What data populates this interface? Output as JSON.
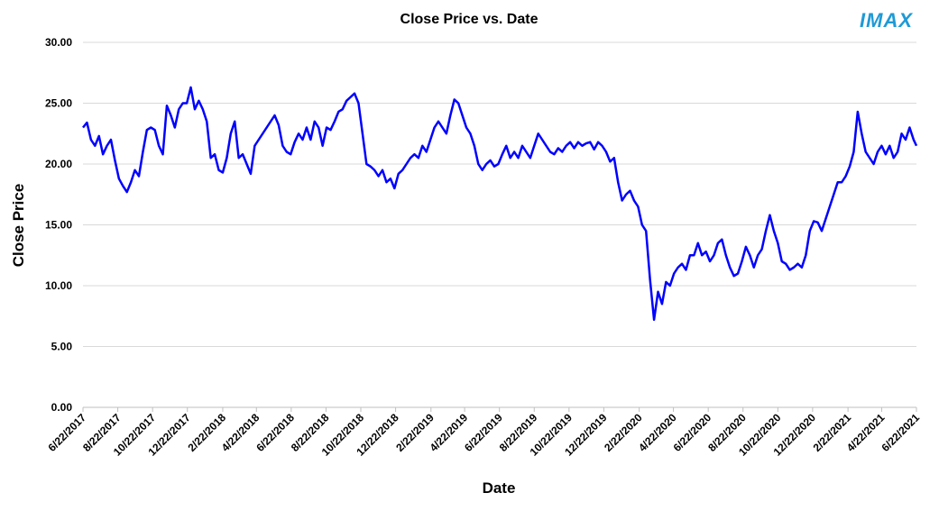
{
  "logo": "IMAX",
  "chart_data": {
    "type": "line",
    "title": "Close Price vs. Date",
    "x_label": "Date",
    "y_label": "Close Price",
    "grid": true,
    "ylim": [
      0,
      30
    ],
    "yticks": [
      {
        "value": 0,
        "label": "0.00"
      },
      {
        "value": 5,
        "label": "5.00"
      },
      {
        "value": 10,
        "label": "10.00"
      },
      {
        "value": 15,
        "label": "15.00"
      },
      {
        "value": 20,
        "label": "20.00"
      },
      {
        "value": 25,
        "label": "25.00"
      },
      {
        "value": 30,
        "label": "30.00"
      }
    ],
    "xlim": [
      "6/22/2017",
      "6/22/2021"
    ],
    "xticks": [
      "6/22/2017",
      "8/22/2017",
      "10/22/2017",
      "12/22/2017",
      "2/22/2018",
      "4/22/2018",
      "6/22/2018",
      "8/22/2018",
      "10/22/2018",
      "12/22/2018",
      "2/22/2019",
      "4/22/2019",
      "6/22/2019",
      "8/22/2019",
      "10/22/2019",
      "12/22/2019",
      "2/22/2020",
      "4/22/2020",
      "6/22/2020",
      "8/22/2020",
      "10/22/2020",
      "12/22/2020",
      "2/22/2021",
      "4/22/2021",
      "6/22/2021"
    ],
    "x": [
      "6/22/2017",
      "6/29/2017",
      "7/6/2017",
      "7/13/2017",
      "7/20/2017",
      "7/27/2017",
      "8/3/2017",
      "8/10/2017",
      "8/17/2017",
      "8/24/2017",
      "8/31/2017",
      "9/7/2017",
      "9/14/2017",
      "9/21/2017",
      "9/28/2017",
      "10/5/2017",
      "10/12/2017",
      "10/19/2017",
      "10/26/2017",
      "11/2/2017",
      "11/9/2017",
      "11/16/2017",
      "11/23/2017",
      "11/30/2017",
      "12/7/2017",
      "12/14/2017",
      "12/21/2017",
      "12/28/2017",
      "1/4/2018",
      "1/11/2018",
      "1/18/2018",
      "1/25/2018",
      "2/1/2018",
      "2/8/2018",
      "2/15/2018",
      "2/22/2018",
      "3/1/2018",
      "3/8/2018",
      "3/15/2018",
      "3/22/2018",
      "3/29/2018",
      "4/5/2018",
      "4/12/2018",
      "4/19/2018",
      "4/26/2018",
      "5/3/2018",
      "5/10/2018",
      "5/17/2018",
      "5/24/2018",
      "5/31/2018",
      "6/7/2018",
      "6/14/2018",
      "6/21/2018",
      "6/28/2018",
      "7/5/2018",
      "7/12/2018",
      "7/19/2018",
      "7/26/2018",
      "8/2/2018",
      "8/9/2018",
      "8/16/2018",
      "8/23/2018",
      "8/30/2018",
      "9/6/2018",
      "9/13/2018",
      "9/20/2018",
      "9/27/2018",
      "10/4/2018",
      "10/11/2018",
      "10/18/2018",
      "10/25/2018",
      "11/1/2018",
      "11/8/2018",
      "11/15/2018",
      "11/22/2018",
      "11/29/2018",
      "12/6/2018",
      "12/13/2018",
      "12/20/2018",
      "12/27/2018",
      "1/3/2019",
      "1/10/2019",
      "1/17/2019",
      "1/24/2019",
      "1/31/2019",
      "2/7/2019",
      "2/14/2019",
      "2/21/2019",
      "2/28/2019",
      "3/7/2019",
      "3/14/2019",
      "3/21/2019",
      "3/28/2019",
      "4/4/2019",
      "4/11/2019",
      "4/18/2019",
      "4/25/2019",
      "5/2/2019",
      "5/9/2019",
      "5/16/2019",
      "5/23/2019",
      "5/30/2019",
      "6/6/2019",
      "6/13/2019",
      "6/20/2019",
      "6/27/2019",
      "7/4/2019",
      "7/11/2019",
      "7/18/2019",
      "7/25/2019",
      "8/1/2019",
      "8/8/2019",
      "8/15/2019",
      "8/22/2019",
      "8/29/2019",
      "9/5/2019",
      "9/12/2019",
      "9/19/2019",
      "9/26/2019",
      "10/3/2019",
      "10/10/2019",
      "10/17/2019",
      "10/24/2019",
      "10/31/2019",
      "11/7/2019",
      "11/14/2019",
      "11/21/2019",
      "11/28/2019",
      "12/5/2019",
      "12/12/2019",
      "12/19/2019",
      "12/26/2019",
      "1/2/2020",
      "1/9/2020",
      "1/16/2020",
      "1/23/2020",
      "1/30/2020",
      "2/6/2020",
      "2/13/2020",
      "2/20/2020",
      "2/27/2020",
      "3/5/2020",
      "3/12/2020",
      "3/19/2020",
      "3/26/2020",
      "4/2/2020",
      "4/9/2020",
      "4/16/2020",
      "4/23/2020",
      "4/30/2020",
      "5/7/2020",
      "5/14/2020",
      "5/21/2020",
      "5/28/2020",
      "6/4/2020",
      "6/11/2020",
      "6/18/2020",
      "6/25/2020",
      "7/2/2020",
      "7/9/2020",
      "7/16/2020",
      "7/23/2020",
      "7/30/2020",
      "8/6/2020",
      "8/13/2020",
      "8/20/2020",
      "8/27/2020",
      "9/3/2020",
      "9/10/2020",
      "9/17/2020",
      "9/24/2020",
      "10/1/2020",
      "10/8/2020",
      "10/15/2020",
      "10/22/2020",
      "10/29/2020",
      "11/5/2020",
      "11/12/2020",
      "11/19/2020",
      "11/26/2020",
      "12/3/2020",
      "12/10/2020",
      "12/17/2020",
      "12/24/2020",
      "12/31/2020",
      "1/7/2021",
      "1/14/2021",
      "1/21/2021",
      "1/28/2021",
      "2/4/2021",
      "2/11/2021",
      "2/18/2021",
      "2/25/2021",
      "3/4/2021",
      "3/11/2021",
      "3/18/2021",
      "3/25/2021",
      "4/1/2021",
      "4/8/2021",
      "4/15/2021",
      "4/22/2021",
      "4/29/2021",
      "5/6/2021",
      "5/13/2021",
      "5/20/2021",
      "5/27/2021",
      "6/3/2021",
      "6/10/2021",
      "6/17/2021",
      "6/22/2021"
    ],
    "series": [
      {
        "name": "Close Price",
        "color": "#0000ff",
        "values": [
          23.0,
          23.4,
          22.0,
          21.5,
          22.3,
          20.8,
          21.5,
          22.0,
          20.3,
          18.8,
          18.2,
          17.7,
          18.5,
          19.5,
          19.0,
          21.0,
          22.8,
          23.0,
          22.8,
          21.5,
          20.8,
          24.8,
          24.0,
          23.0,
          24.5,
          25.0,
          25.0,
          26.3,
          24.5,
          25.2,
          24.5,
          23.5,
          20.5,
          20.8,
          19.5,
          19.3,
          20.5,
          22.5,
          23.5,
          20.5,
          20.8,
          20.0,
          19.2,
          21.5,
          22.0,
          22.5,
          23.0,
          23.5,
          24.0,
          23.2,
          21.5,
          21.0,
          20.8,
          21.8,
          22.5,
          22.0,
          23.0,
          22.0,
          23.5,
          23.0,
          21.5,
          23.0,
          22.8,
          23.5,
          24.3,
          24.5,
          25.2,
          25.5,
          25.8,
          25.0,
          22.5,
          20.0,
          19.8,
          19.5,
          19.0,
          19.5,
          18.5,
          18.8,
          18.0,
          19.2,
          19.5,
          20.0,
          20.5,
          20.8,
          20.5,
          21.5,
          21.0,
          22.0,
          23.0,
          23.5,
          23.0,
          22.5,
          24.0,
          25.3,
          25.0,
          24.0,
          23.0,
          22.5,
          21.5,
          20.0,
          19.5,
          20.0,
          20.3,
          19.8,
          20.0,
          20.8,
          21.5,
          20.5,
          21.0,
          20.5,
          21.5,
          21.0,
          20.5,
          21.5,
          22.5,
          22.0,
          21.5,
          21.0,
          20.8,
          21.3,
          21.0,
          21.5,
          21.8,
          21.3,
          21.8,
          21.5,
          21.7,
          21.8,
          21.2,
          21.8,
          21.5,
          21.0,
          20.2,
          20.5,
          18.5,
          17.0,
          17.5,
          17.8,
          17.0,
          16.5,
          15.0,
          14.5,
          10.5,
          7.2,
          9.5,
          8.5,
          10.3,
          10.0,
          11.0,
          11.5,
          11.8,
          11.3,
          12.5,
          12.5,
          13.5,
          12.5,
          12.8,
          12.0,
          12.5,
          13.5,
          13.8,
          12.5,
          11.5,
          10.8,
          11.0,
          12.0,
          13.2,
          12.5,
          11.5,
          12.5,
          13.0,
          14.5,
          15.8,
          14.5,
          13.5,
          12.0,
          11.8,
          11.3,
          11.5,
          11.8,
          11.5,
          12.5,
          14.5,
          15.3,
          15.2,
          14.5,
          15.5,
          16.5,
          17.5,
          18.5,
          18.5,
          19.0,
          19.8,
          21.0,
          24.3,
          22.5,
          21.0,
          20.5,
          20.0,
          21.0,
          21.5,
          20.8,
          21.5,
          20.5,
          21.0,
          22.5,
          22.0,
          23.0,
          22.0,
          21.5
        ]
      }
    ]
  }
}
